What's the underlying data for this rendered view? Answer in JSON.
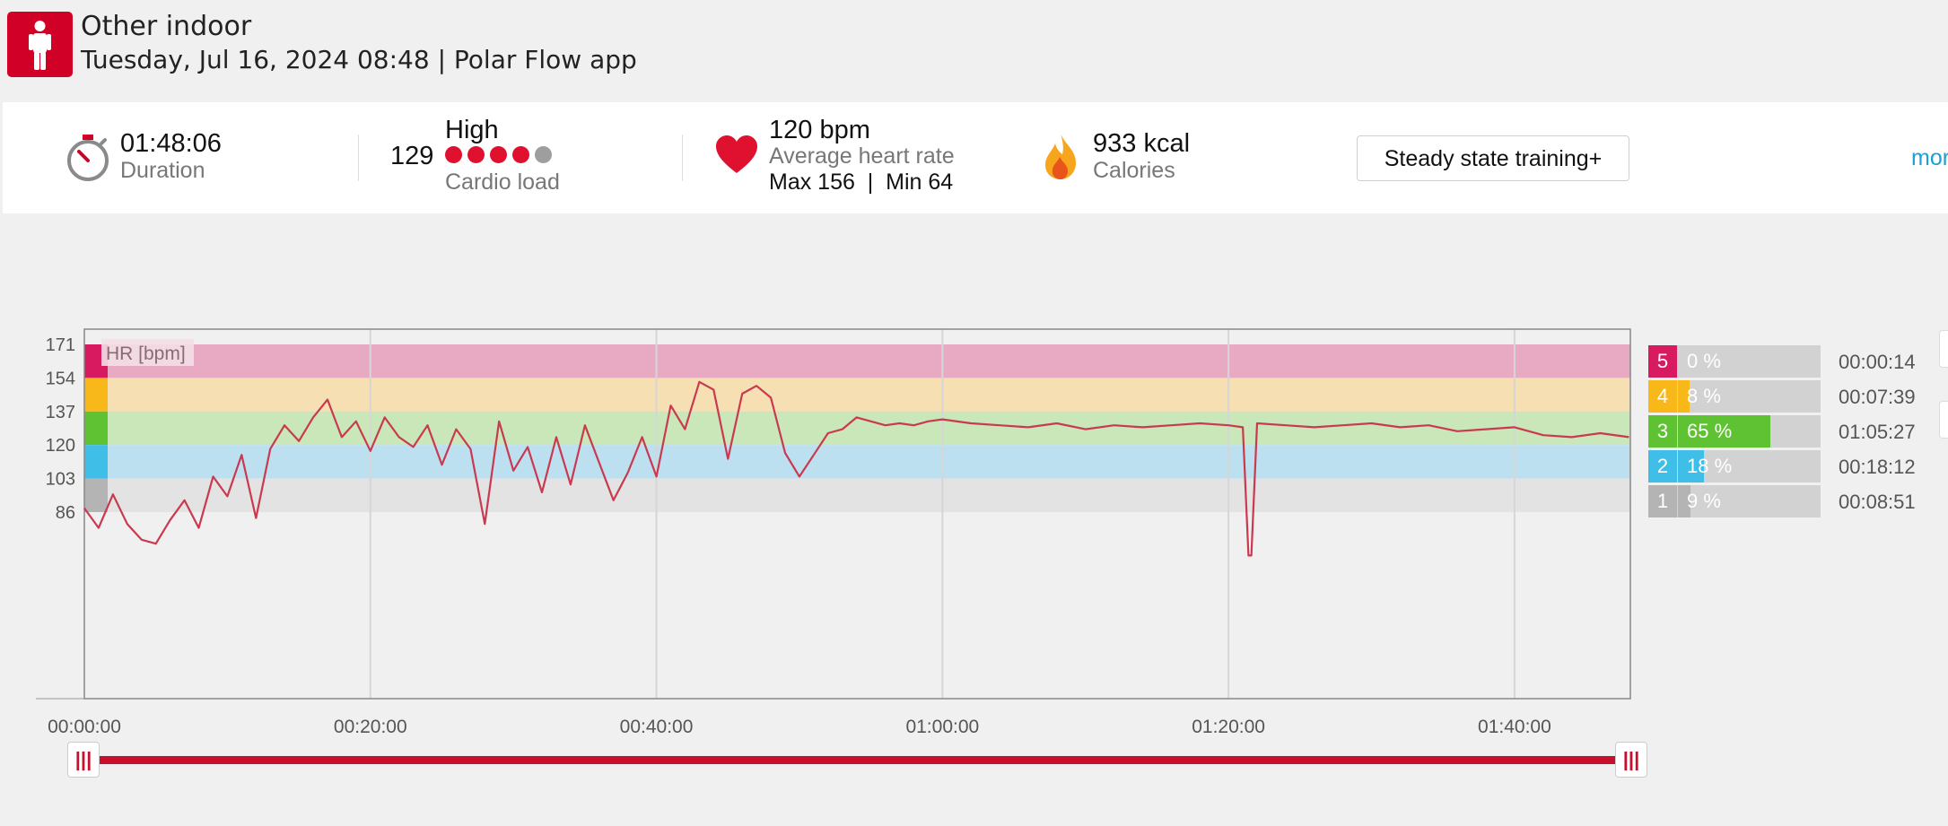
{
  "header": {
    "activity": "Other indoor",
    "datetime_source": "Tuesday, Jul 16, 2024 08:48 | Polar Flow app",
    "activity_icon": "person-standing-icon",
    "icon_color": "#d10027"
  },
  "summary": {
    "duration_value": "01:48:06",
    "duration_label": "Duration",
    "cardio_load_value": "129",
    "cardio_load_level": "High",
    "cardio_load_dots": [
      true,
      true,
      true,
      true,
      false
    ],
    "cardio_load_label": "Cardio load",
    "avg_hr_value": "120 bpm",
    "avg_hr_label": "Average heart rate",
    "max_min_hr": "Max 156  |  Min 64",
    "calories_value": "933 kcal",
    "calories_label": "Calories",
    "training_benefit_button": "Steady state training+",
    "more_link": "mor"
  },
  "chart_data": {
    "type": "line",
    "legend_label": "HR [bpm]",
    "y_ticks": [
      "171",
      "154",
      "137",
      "120",
      "103",
      "86"
    ],
    "x_ticks": [
      "00:00:00",
      "00:20:00",
      "00:40:00",
      "01:00:00",
      "01:20:00",
      "01:40:00"
    ],
    "xlim_minutes": [
      0,
      108.1
    ],
    "zones": [
      {
        "zone": 5,
        "from": 154,
        "to": 171,
        "color": "#e8aac3",
        "edge": "#d81b60"
      },
      {
        "zone": 4,
        "from": 137,
        "to": 154,
        "color": "#f6dfb2",
        "edge": "#f9b81a"
      },
      {
        "zone": 3,
        "from": 120,
        "to": 137,
        "color": "#c9e7b8",
        "edge": "#5fc232"
      },
      {
        "zone": 2,
        "from": 103,
        "to": 120,
        "color": "#bde0f0",
        "edge": "#3fbfe8"
      },
      {
        "zone": 1,
        "from": 86,
        "to": 103,
        "color": "#e3e3e3",
        "edge": "#b4b4b4"
      }
    ],
    "series": [
      {
        "line_color": "#c9394f",
        "x_minutes": [
          0,
          1,
          2,
          3,
          4,
          5,
          6,
          7,
          8,
          9,
          10,
          11,
          12,
          13,
          14,
          15,
          16,
          17,
          18,
          19,
          20,
          21,
          22,
          23,
          24,
          25,
          26,
          27,
          28,
          29,
          30,
          31,
          32,
          33,
          34,
          35,
          36,
          37,
          38,
          39,
          40,
          41,
          42,
          43,
          44,
          45,
          46,
          47,
          48,
          49,
          50,
          51,
          52,
          53,
          54,
          55,
          56,
          57,
          58,
          59,
          60,
          62,
          64,
          66,
          68,
          70,
          72,
          74,
          76,
          78,
          80,
          81,
          81.4,
          81.6,
          82,
          84,
          86,
          88,
          90,
          92,
          94,
          96,
          98,
          100,
          102,
          104,
          106,
          108
        ],
        "y_bpm": [
          88,
          78,
          95,
          80,
          72,
          70,
          82,
          92,
          78,
          104,
          94,
          115,
          83,
          118,
          130,
          122,
          134,
          143,
          124,
          132,
          117,
          134,
          124,
          119,
          130,
          110,
          128,
          118,
          80,
          132,
          107,
          119,
          96,
          124,
          100,
          130,
          111,
          92,
          106,
          124,
          104,
          140,
          128,
          152,
          148,
          113,
          146,
          150,
          144,
          116,
          104,
          115,
          126,
          128,
          134,
          132,
          130,
          131,
          130,
          132,
          133,
          131,
          130,
          129,
          131,
          128,
          130,
          129,
          130,
          131,
          130,
          129,
          64,
          64,
          131,
          130,
          129,
          130,
          131,
          129,
          130,
          127,
          128,
          129,
          125,
          124,
          126,
          124
        ]
      }
    ]
  },
  "zone_legend": [
    {
      "zone": "5",
      "percent": "0 %",
      "fraction": 0.0,
      "time": "00:00:14",
      "color": "#d81b60"
    },
    {
      "zone": "4",
      "percent": "8 %",
      "fraction": 0.08,
      "time": "00:07:39",
      "color": "#f9b81a"
    },
    {
      "zone": "3",
      "percent": "65 %",
      "fraction": 0.65,
      "time": "01:05:27",
      "color": "#5fc232"
    },
    {
      "zone": "2",
      "percent": "18 %",
      "fraction": 0.18,
      "time": "00:18:12",
      "color": "#3fbfe8"
    },
    {
      "zone": "1",
      "percent": "9 %",
      "fraction": 0.09,
      "time": "00:08:51",
      "color": "#b4b4b4"
    }
  ],
  "range_slider": {
    "start_handle_icon": "grip-lines-icon",
    "end_handle_icon": "grip-lines-icon",
    "grip": "|||",
    "track_color": "#c8102e"
  }
}
